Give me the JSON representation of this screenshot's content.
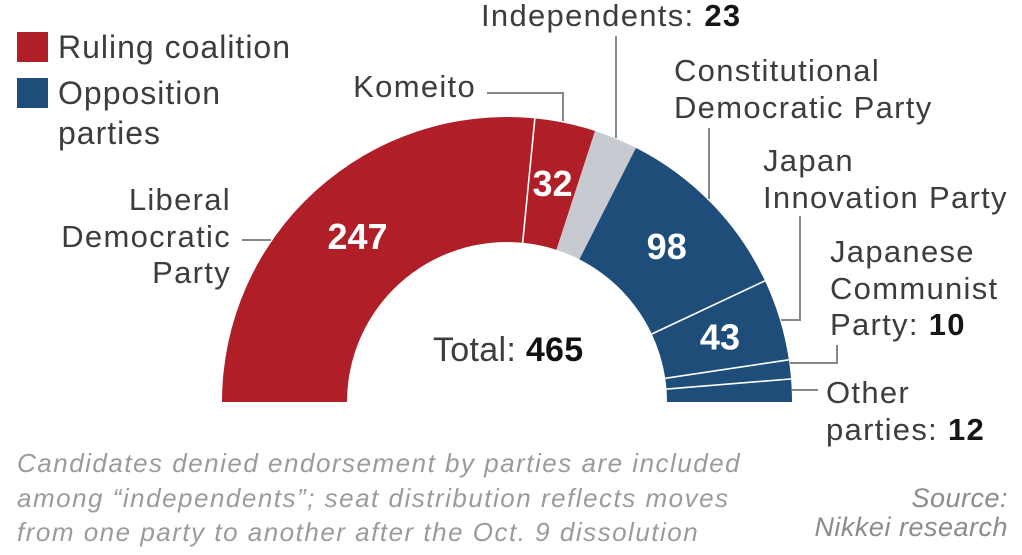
{
  "legend": {
    "items": [
      {
        "label": "Ruling coalition",
        "color": "#b01f28"
      },
      {
        "label": "Opposition parties",
        "color": "#1f4d79"
      }
    ]
  },
  "chart_data": {
    "type": "pie",
    "subtype": "half-donut",
    "title": "",
    "total_label": "Total:",
    "total_value": "465",
    "legend_position": "top-left",
    "segments": [
      {
        "name": "Liberal Democratic Party",
        "value": 247,
        "group": "Ruling coalition",
        "color": "#b01f28",
        "value_placement": "inside"
      },
      {
        "name": "Komeito",
        "value": 32,
        "group": "Ruling coalition",
        "color": "#b01f28",
        "value_placement": "inside"
      },
      {
        "name": "Independents",
        "value": 23,
        "group": "Independents",
        "color": "#c7cad0",
        "value_placement": "label"
      },
      {
        "name": "Constitutional Democratic Party",
        "value": 98,
        "group": "Opposition parties",
        "color": "#1f4d79",
        "value_placement": "inside"
      },
      {
        "name": "Japan Innovation Party",
        "value": 43,
        "group": "Opposition parties",
        "color": "#1f4d79",
        "value_placement": "inside"
      },
      {
        "name": "Japanese Communist Party",
        "value": 10,
        "group": "Opposition parties",
        "color": "#1f4d79",
        "value_placement": "label"
      },
      {
        "name": "Other parties",
        "value": 12,
        "group": "Opposition parties",
        "color": "#1f4d79",
        "value_placement": "label"
      }
    ],
    "callouts": [
      {
        "id": "ldp",
        "lines": [
          [
            {
              "t": "Liberal"
            }
          ],
          [
            {
              "t": "Democratic"
            }
          ],
          [
            {
              "t": "Party"
            }
          ]
        ]
      },
      {
        "id": "komeito",
        "lines": [
          [
            {
              "t": "Komeito"
            }
          ]
        ]
      },
      {
        "id": "independents",
        "lines": [
          [
            {
              "t": "Independents: "
            },
            {
              "t": "23",
              "bold": true
            }
          ]
        ]
      },
      {
        "id": "cdp",
        "lines": [
          [
            {
              "t": "Constitutional"
            }
          ],
          [
            {
              "t": "Democratic Party"
            }
          ]
        ]
      },
      {
        "id": "jip",
        "lines": [
          [
            {
              "t": "Japan"
            }
          ],
          [
            {
              "t": "Innovation Party"
            }
          ]
        ]
      },
      {
        "id": "jcp",
        "lines": [
          [
            {
              "t": "Japanese"
            }
          ],
          [
            {
              "t": "Communist"
            }
          ],
          [
            {
              "t": "Party: "
            },
            {
              "t": "10",
              "bold": true
            }
          ]
        ]
      },
      {
        "id": "other",
        "lines": [
          [
            {
              "t": "Other"
            }
          ],
          [
            {
              "t": "parties: "
            },
            {
              "t": "12",
              "bold": true
            }
          ]
        ]
      }
    ]
  },
  "total": {
    "label": "Total: ",
    "value": "465"
  },
  "footnote": {
    "lines": [
      "Candidates denied endorsement by parties are included",
      "among “independents”; seat distribution reflects moves",
      "from one party to another after the Oct. 9 dissolution"
    ]
  },
  "source": {
    "lines": [
      "Source:",
      "Nikkei research"
    ]
  }
}
